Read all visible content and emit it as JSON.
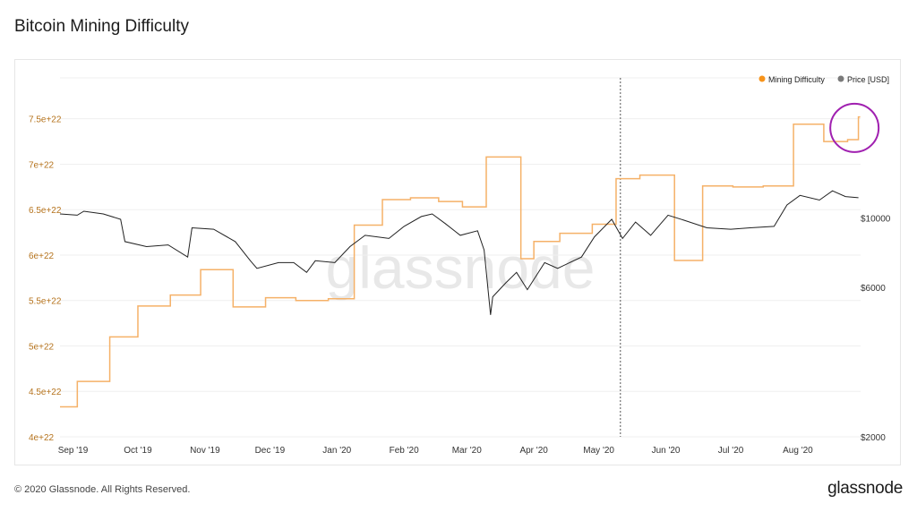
{
  "page": {
    "title": "Bitcoin Mining Difficulty",
    "footer_copyright": "© 2020 Glassnode. All Rights Reserved.",
    "footer_brand": "glassnode",
    "watermark": "glassnode"
  },
  "colors": {
    "difficulty": "#f7931a",
    "difficulty_line": "#f5b168",
    "price": "#222222",
    "legend_price_dot": "#7a7a7a",
    "axis_left_text": "#b5731d",
    "axis_right_text": "#333333",
    "grid": "#efefef",
    "marker_circle": "#a020b0",
    "watermark": "#e8e8e8"
  },
  "chart_data": {
    "type": "line",
    "title": "Bitcoin Mining Difficulty",
    "legend": {
      "placement": "top-right",
      "entries": [
        "Mining Difficulty",
        "Price [USD]"
      ]
    },
    "grid": true,
    "x_ticks": [
      "Sep '19",
      "Oct '19",
      "Nov '19",
      "Dec '19",
      "Jan '20",
      "Feb '20",
      "Mar '20",
      "Apr '20",
      "May '20",
      "Jun '20",
      "Jul '20",
      "Aug '20"
    ],
    "x_range": [
      "2019-08-26",
      "2020-08-30"
    ],
    "y_left": {
      "label": "Mining Difficulty",
      "ticks": [
        "4e+22",
        "4.5e+22",
        "5e+22",
        "5.5e+22",
        "6e+22",
        "6.5e+22",
        "7e+22",
        "7.5e+22"
      ],
      "range": [
        4e+22,
        7.95e+22
      ]
    },
    "y_right": {
      "label": "Price [USD]",
      "scale": "log",
      "ticks": [
        "$2000",
        "$6000",
        "$10000"
      ],
      "tick_values": [
        2000,
        6000,
        10000
      ],
      "range": [
        2000,
        28000
      ]
    },
    "series": [
      {
        "name": "Mining Difficulty",
        "axis": "left",
        "step": true,
        "points": [
          [
            "2019-08-26",
            4.33e+22
          ],
          [
            "2019-09-03",
            4.61e+22
          ],
          [
            "2019-09-18",
            5.1e+22
          ],
          [
            "2019-10-01",
            5.44e+22
          ],
          [
            "2019-10-16",
            5.56e+22
          ],
          [
            "2019-10-30",
            5.84e+22
          ],
          [
            "2019-11-14",
            5.43e+22
          ],
          [
            "2019-11-29",
            5.53e+22
          ],
          [
            "2019-12-13",
            5.5e+22
          ],
          [
            "2019-12-28",
            5.52e+22
          ],
          [
            "2020-01-09",
            6.33e+22
          ],
          [
            "2020-01-22",
            6.61e+22
          ],
          [
            "2020-02-04",
            6.63e+22
          ],
          [
            "2020-02-17",
            6.59e+22
          ],
          [
            "2020-02-28",
            6.53e+22
          ],
          [
            "2020-03-10",
            7.08e+22
          ],
          [
            "2020-03-26",
            5.96e+22
          ],
          [
            "2020-04-01",
            6.15e+22
          ],
          [
            "2020-04-13",
            6.24e+22
          ],
          [
            "2020-04-28",
            6.34e+22
          ],
          [
            "2020-05-09",
            6.84e+22
          ],
          [
            "2020-05-20",
            6.88e+22
          ],
          [
            "2020-06-05",
            5.94e+22
          ],
          [
            "2020-06-18",
            6.76e+22
          ],
          [
            "2020-07-02",
            6.75e+22
          ],
          [
            "2020-07-16",
            6.76e+22
          ],
          [
            "2020-07-30",
            7.44e+22
          ],
          [
            "2020-08-13",
            7.25e+22
          ],
          [
            "2020-08-24",
            7.27e+22
          ],
          [
            "2020-08-29",
            7.52e+22
          ]
        ]
      },
      {
        "name": "Price [USD]",
        "axis": "right",
        "points": [
          [
            "2019-08-26",
            10300
          ],
          [
            "2019-09-03",
            10200
          ],
          [
            "2019-09-06",
            10500
          ],
          [
            "2019-09-15",
            10300
          ],
          [
            "2019-09-23",
            9900
          ],
          [
            "2019-09-25",
            8400
          ],
          [
            "2019-10-05",
            8100
          ],
          [
            "2019-10-15",
            8200
          ],
          [
            "2019-10-24",
            7500
          ],
          [
            "2019-10-26",
            9300
          ],
          [
            "2019-11-05",
            9200
          ],
          [
            "2019-11-15",
            8400
          ],
          [
            "2019-11-22",
            7300
          ],
          [
            "2019-11-25",
            6900
          ],
          [
            "2019-12-05",
            7200
          ],
          [
            "2019-12-12",
            7200
          ],
          [
            "2019-12-18",
            6700
          ],
          [
            "2019-12-22",
            7300
          ],
          [
            "2019-12-31",
            7200
          ],
          [
            "2020-01-07",
            8100
          ],
          [
            "2020-01-14",
            8800
          ],
          [
            "2020-01-25",
            8600
          ],
          [
            "2020-02-01",
            9400
          ],
          [
            "2020-02-09",
            10100
          ],
          [
            "2020-02-14",
            10300
          ],
          [
            "2020-02-20",
            9600
          ],
          [
            "2020-02-27",
            8800
          ],
          [
            "2020-03-06",
            9100
          ],
          [
            "2020-03-09",
            7900
          ],
          [
            "2020-03-12",
            4900
          ],
          [
            "2020-03-13",
            5600
          ],
          [
            "2020-03-19",
            6200
          ],
          [
            "2020-03-24",
            6700
          ],
          [
            "2020-03-29",
            5900
          ],
          [
            "2020-04-06",
            7200
          ],
          [
            "2020-04-12",
            6900
          ],
          [
            "2020-04-23",
            7500
          ],
          [
            "2020-04-29",
            8700
          ],
          [
            "2020-05-07",
            9900
          ],
          [
            "2020-05-12",
            8600
          ],
          [
            "2020-05-18",
            9700
          ],
          [
            "2020-05-25",
            8800
          ],
          [
            "2020-06-02",
            10200
          ],
          [
            "2020-06-10",
            9800
          ],
          [
            "2020-06-20",
            9300
          ],
          [
            "2020-07-01",
            9200
          ],
          [
            "2020-07-10",
            9300
          ],
          [
            "2020-07-21",
            9400
          ],
          [
            "2020-07-27",
            11000
          ],
          [
            "2020-08-02",
            11800
          ],
          [
            "2020-08-11",
            11400
          ],
          [
            "2020-08-17",
            12200
          ],
          [
            "2020-08-23",
            11700
          ],
          [
            "2020-08-29",
            11600
          ]
        ]
      }
    ],
    "annotations": [
      {
        "type": "vertical-dashed-line",
        "x": "2020-05-11"
      },
      {
        "type": "circle-highlight",
        "x": "2020-08-28",
        "series": "Mining Difficulty"
      }
    ]
  }
}
